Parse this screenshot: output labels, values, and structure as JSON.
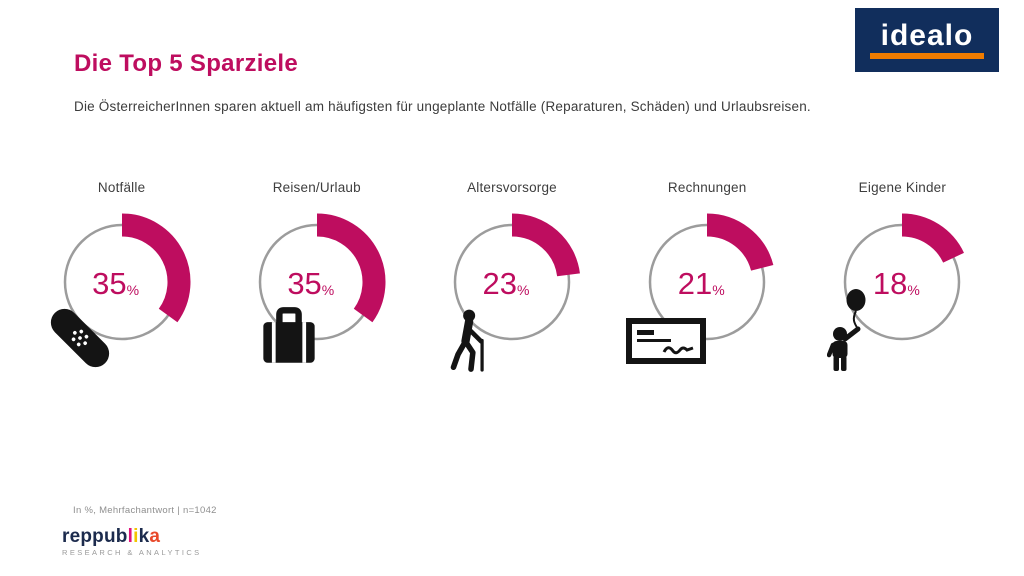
{
  "header": {
    "title": "Die Top 5 Sparziele",
    "subtitle": "Die ÖsterreicherInnen sparen aktuell am häufigsten für ungeplante Notfälle (Reparaturen, Schäden) und Urlaubsreisen."
  },
  "branding": {
    "idealo_text": "idealo",
    "reppublika_subtext": "RESEARCH & ANALYTICS",
    "reppublika_segments": [
      {
        "text": "reppub",
        "color": "#1c2b4d"
      },
      {
        "text": "l",
        "color": "#e0127d"
      },
      {
        "text": "i",
        "color": "#f2c400"
      },
      {
        "text": "k",
        "color": "#1c2b4d"
      },
      {
        "text": "a",
        "color": "#e8492b"
      }
    ]
  },
  "colors": {
    "accent": "#be0d5f",
    "ring_gray": "#9c9c9c",
    "idealo_navy": "#112e5c",
    "idealo_orange": "#f07c00",
    "icon_black": "#141414",
    "text_dark": "#3c3c3c",
    "footnote_gray": "#8f8f8f"
  },
  "chart_data": {
    "type": "pie",
    "variant": "donut_multiples",
    "title": "Die Top 5 Sparziele",
    "categories": [
      "Notfälle",
      "Reisen/Urlaub",
      "Altersvorsorge",
      "Rechnungen",
      "Eigene Kinder"
    ],
    "values": [
      35,
      35,
      23,
      21,
      18
    ],
    "unit": "%",
    "start_angle_deg": 0,
    "direction": "clockwise",
    "icons": [
      "bandage-icon",
      "suitcase-icon",
      "elderly-person-icon",
      "cheque-icon",
      "child-balloon-icon"
    ],
    "note": "In %, Mehrfachantwort | n=1042"
  },
  "footer": {
    "footnote": "In %, Mehrfachantwort | n=1042"
  }
}
